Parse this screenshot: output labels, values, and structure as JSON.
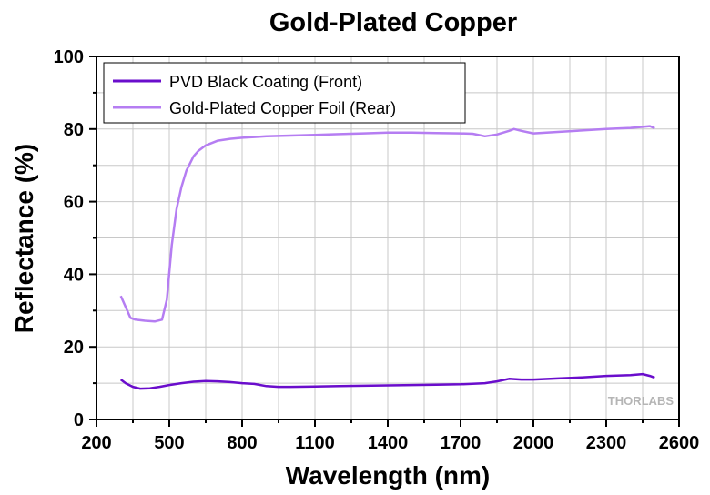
{
  "chart_data": {
    "type": "line",
    "title": "Gold-Plated Copper",
    "xlabel": "Wavelength (nm)",
    "ylabel": "Reflectance (%)",
    "xlim": [
      200,
      2600
    ],
    "ylim": [
      0,
      100
    ],
    "xticks": [
      200,
      500,
      800,
      1100,
      1400,
      1700,
      2000,
      2300,
      2600
    ],
    "yticks": [
      0,
      20,
      40,
      60,
      80,
      100
    ],
    "xtick_labels": [
      "200",
      "500",
      "800",
      "1100",
      "1400",
      "1700",
      "2000",
      "2300",
      "2600"
    ],
    "ytick_labels": [
      "0",
      "20",
      "40",
      "60",
      "80",
      "100"
    ],
    "grid": true,
    "legend_position": "top-left",
    "watermark": "THORLABS",
    "series": [
      {
        "name": "PVD Black Coating (Front)",
        "color": "#6a0dcc",
        "x": [
          300,
          320,
          350,
          380,
          420,
          460,
          500,
          550,
          600,
          650,
          700,
          750,
          800,
          850,
          900,
          950,
          1000,
          1100,
          1200,
          1300,
          1400,
          1500,
          1600,
          1700,
          1800,
          1850,
          1900,
          1950,
          2000,
          2100,
          2200,
          2300,
          2400,
          2450,
          2480,
          2500
        ],
        "y": [
          11.0,
          10.0,
          9.0,
          8.5,
          8.6,
          9.0,
          9.5,
          10.0,
          10.4,
          10.6,
          10.5,
          10.3,
          10.0,
          9.8,
          9.2,
          9.0,
          9.0,
          9.1,
          9.2,
          9.3,
          9.4,
          9.5,
          9.6,
          9.7,
          10.0,
          10.5,
          11.2,
          11.0,
          11.0,
          11.3,
          11.6,
          12.0,
          12.2,
          12.5,
          12.0,
          11.5
        ]
      },
      {
        "name": "Gold-Plated Copper Foil (Rear)",
        "color": "#b57df2",
        "x": [
          300,
          320,
          340,
          360,
          400,
          440,
          470,
          490,
          510,
          530,
          550,
          570,
          600,
          620,
          650,
          700,
          750,
          800,
          850,
          900,
          1000,
          1100,
          1200,
          1300,
          1400,
          1500,
          1600,
          1700,
          1750,
          1780,
          1800,
          1850,
          1900,
          1920,
          1950,
          2000,
          2100,
          2200,
          2300,
          2400,
          2450,
          2480,
          2500
        ],
        "y": [
          34.0,
          31.0,
          28.0,
          27.5,
          27.2,
          27.0,
          27.5,
          33.0,
          48.0,
          58.0,
          64.0,
          68.5,
          72.5,
          74.0,
          75.5,
          76.8,
          77.3,
          77.6,
          77.8,
          78.0,
          78.2,
          78.4,
          78.6,
          78.8,
          79.0,
          79.0,
          78.9,
          78.8,
          78.7,
          78.3,
          78.0,
          78.5,
          79.5,
          80.0,
          79.5,
          78.8,
          79.2,
          79.6,
          80.0,
          80.3,
          80.6,
          80.8,
          80.2
        ]
      }
    ]
  }
}
